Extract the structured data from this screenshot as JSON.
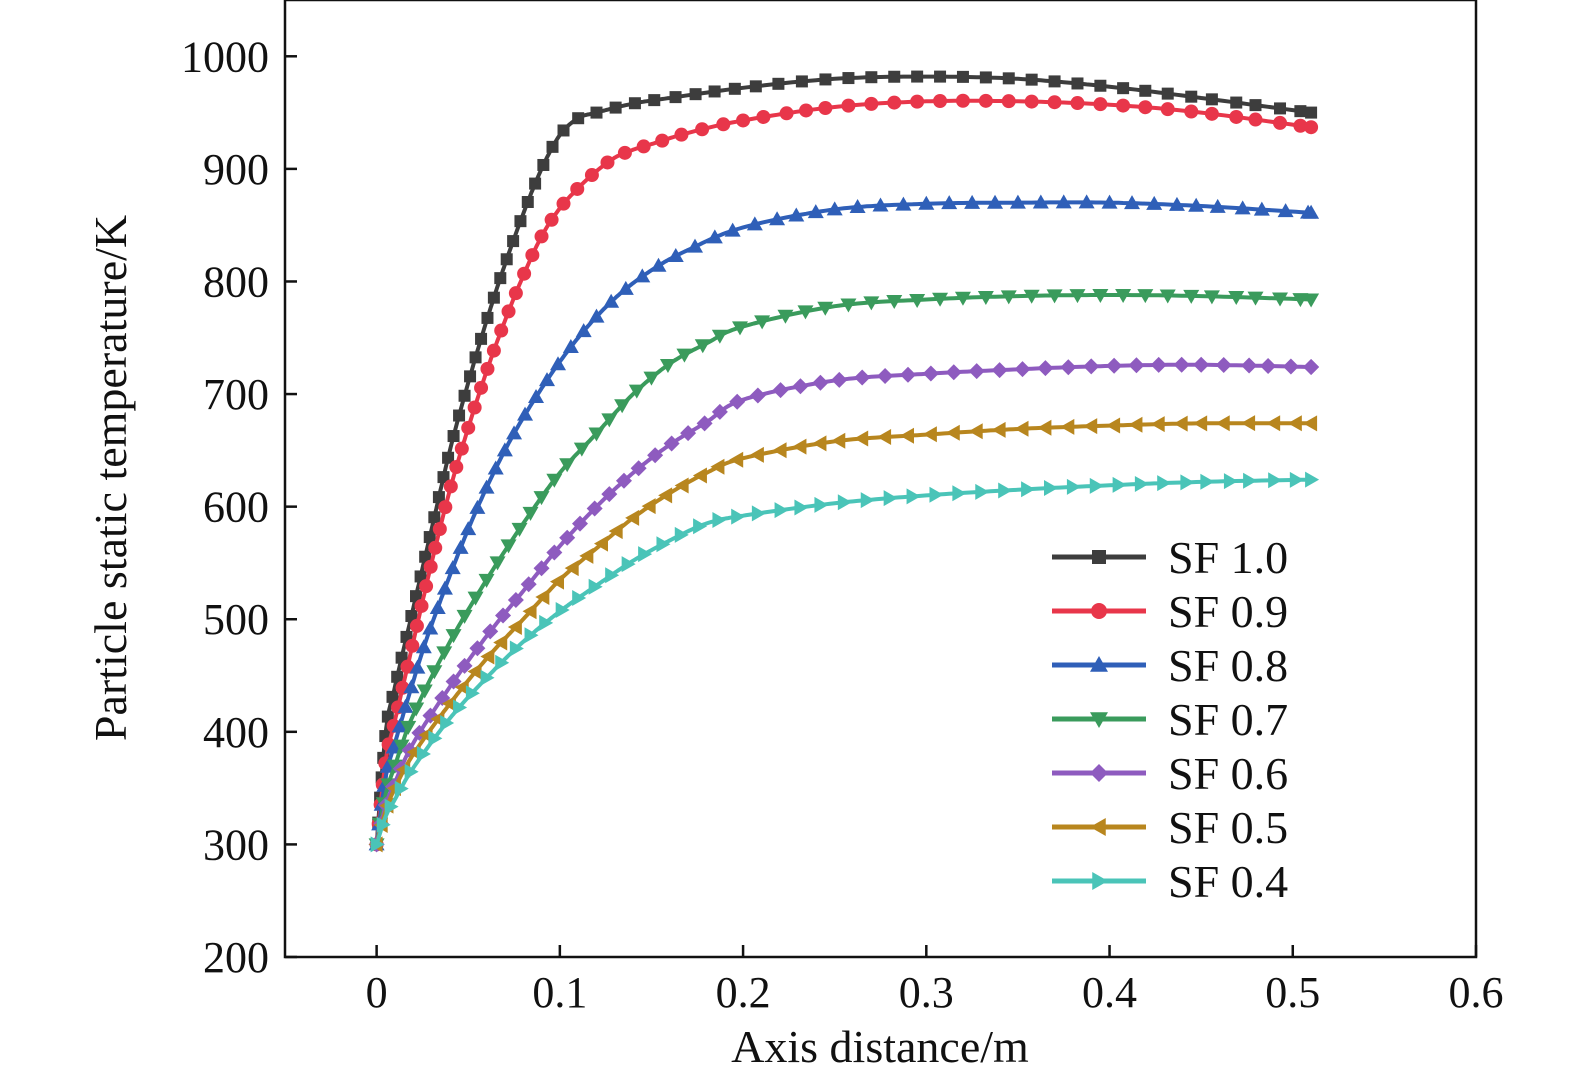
{
  "chart_data": {
    "type": "line",
    "title": "",
    "xlabel": "Axis distance/m",
    "ylabel": "Particle static temperature/K",
    "xlim": [
      -0.05,
      0.6
    ],
    "ylim": [
      200,
      1050
    ],
    "xticks": [
      0,
      0.1,
      0.2,
      0.3,
      0.4,
      0.5,
      0.6
    ],
    "xtick_labels": [
      "0",
      "0.1",
      "0.2",
      "0.3",
      "0.4",
      "0.5",
      "0.6"
    ],
    "yticks": [
      200,
      300,
      400,
      500,
      600,
      700,
      800,
      900,
      1000
    ],
    "ytick_labels": [
      "200",
      "300",
      "400",
      "500",
      "600",
      "700",
      "800",
      "900",
      "1000"
    ],
    "grid": false,
    "legend_position": "bottom-right",
    "series": [
      {
        "name": "SF 1.0",
        "color": "#3d3d3d",
        "marker": "square",
        "x": [
          0,
          0.005,
          0.01,
          0.02,
          0.03,
          0.04,
          0.05,
          0.06,
          0.07,
          0.08,
          0.09,
          0.1,
          0.11,
          0.12,
          0.14,
          0.16,
          0.2,
          0.25,
          0.3,
          0.35,
          0.4,
          0.45,
          0.51
        ],
        "y": [
          300,
          400,
          440,
          510,
          580,
          650,
          710,
          765,
          815,
          860,
          900,
          930,
          945,
          950,
          958,
          963,
          972,
          980,
          982,
          980,
          973,
          963,
          950
        ]
      },
      {
        "name": "SF 0.9",
        "color": "#e8364a",
        "marker": "circle",
        "x": [
          0,
          0.005,
          0.01,
          0.02,
          0.03,
          0.04,
          0.05,
          0.06,
          0.07,
          0.08,
          0.09,
          0.1,
          0.11,
          0.12,
          0.13,
          0.14,
          0.15,
          0.17,
          0.2,
          0.25,
          0.3,
          0.35,
          0.4,
          0.45,
          0.51
        ],
        "y": [
          300,
          375,
          410,
          480,
          550,
          615,
          670,
          720,
          765,
          805,
          840,
          865,
          883,
          898,
          910,
          917,
          922,
          932,
          943,
          955,
          960,
          960,
          957,
          950,
          937
        ]
      },
      {
        "name": "SF 0.8",
        "color": "#2f5fb8",
        "marker": "triangle-up",
        "x": [
          0,
          0.005,
          0.01,
          0.02,
          0.03,
          0.05,
          0.07,
          0.09,
          0.11,
          0.13,
          0.15,
          0.17,
          0.2,
          0.25,
          0.3,
          0.35,
          0.4,
          0.45,
          0.51
        ],
        "y": [
          300,
          360,
          390,
          445,
          495,
          580,
          650,
          705,
          750,
          785,
          810,
          828,
          848,
          864,
          869,
          870,
          870,
          867,
          861
        ]
      },
      {
        "name": "SF 0.7",
        "color": "#3a9b5c",
        "marker": "triangle-down",
        "x": [
          0,
          0.005,
          0.01,
          0.02,
          0.04,
          0.06,
          0.08,
          0.1,
          0.12,
          0.14,
          0.16,
          0.18,
          0.2,
          0.25,
          0.3,
          0.35,
          0.4,
          0.45,
          0.51
        ],
        "y": [
          300,
          345,
          370,
          415,
          480,
          535,
          585,
          630,
          665,
          700,
          727,
          745,
          760,
          778,
          784,
          787,
          788,
          787,
          784
        ]
      },
      {
        "name": "SF 0.6",
        "color": "#8e5bbf",
        "marker": "diamond",
        "x": [
          0,
          0.005,
          0.01,
          0.02,
          0.04,
          0.06,
          0.08,
          0.1,
          0.12,
          0.14,
          0.16,
          0.18,
          0.2,
          0.25,
          0.3,
          0.35,
          0.4,
          0.45,
          0.51
        ],
        "y": [
          300,
          335,
          355,
          390,
          440,
          485,
          525,
          565,
          600,
          630,
          655,
          675,
          695,
          712,
          718,
          722,
          725,
          726,
          724
        ]
      },
      {
        "name": "SF 0.5",
        "color": "#b8861e",
        "marker": "triangle-left",
        "x": [
          0,
          0.005,
          0.01,
          0.02,
          0.04,
          0.06,
          0.08,
          0.1,
          0.12,
          0.14,
          0.16,
          0.18,
          0.2,
          0.25,
          0.3,
          0.35,
          0.4,
          0.45,
          0.51
        ],
        "y": [
          300,
          330,
          350,
          380,
          425,
          465,
          500,
          535,
          563,
          590,
          612,
          630,
          643,
          658,
          664,
          669,
          672,
          674,
          674
        ]
      },
      {
        "name": "SF 0.4",
        "color": "#4ac4b8",
        "marker": "triangle-right",
        "x": [
          0,
          0.005,
          0.01,
          0.02,
          0.04,
          0.06,
          0.08,
          0.1,
          0.12,
          0.14,
          0.16,
          0.18,
          0.2,
          0.25,
          0.3,
          0.35,
          0.4,
          0.45,
          0.51
        ],
        "y": [
          300,
          325,
          340,
          368,
          412,
          448,
          480,
          507,
          530,
          552,
          570,
          585,
          592,
          603,
          610,
          615,
          619,
          622,
          624
        ]
      }
    ]
  }
}
